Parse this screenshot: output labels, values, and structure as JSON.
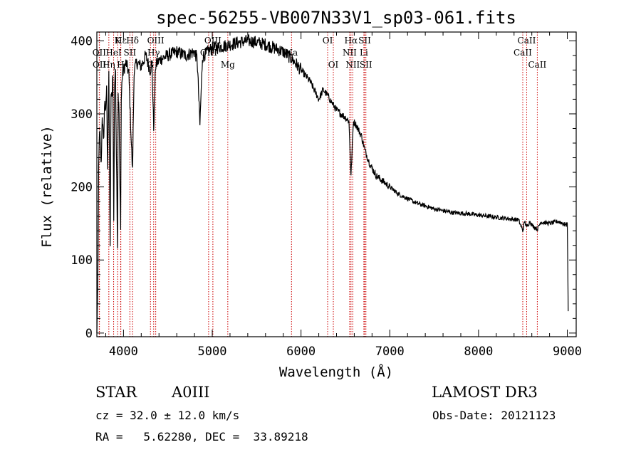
{
  "chart_data": {
    "type": "line",
    "title": "spec-56255-VB007N33V1_sp03-061.fits",
    "xlabel": "Wavelength (Å)",
    "ylabel": "Flux (relative)",
    "xlim": [
      3700,
      9100
    ],
    "ylim": [
      -5,
      412
    ],
    "xticks": [
      4000,
      5000,
      6000,
      7000,
      8000,
      9000
    ],
    "yticks": [
      0,
      100,
      200,
      300,
      400
    ],
    "series": [
      {
        "name": "spectrum",
        "x": [
          3700,
          3710,
          3720,
          3730,
          3740,
          3750,
          3760,
          3775,
          3790,
          3800,
          3810,
          3820,
          3835,
          3850,
          3860,
          3870,
          3880,
          3890,
          3900,
          3910,
          3920,
          3933,
          3940,
          3950,
          3960,
          3968,
          3975,
          3985,
          4000,
          4030,
          4060,
          4101,
          4120,
          4150,
          4200,
          4250,
          4300,
          4320,
          4340,
          4360,
          4380,
          4420,
          4500,
          4600,
          4700,
          4800,
          4830,
          4861,
          4890,
          4950,
          5000,
          5100,
          5200,
          5300,
          5400,
          5500,
          5600,
          5700,
          5800,
          5900,
          6000,
          6100,
          6200,
          6250,
          6300,
          6350,
          6400,
          6450,
          6500,
          6540,
          6563,
          6590,
          6620,
          6680,
          6720,
          6780,
          6850,
          6950,
          7100,
          7300,
          7500,
          7700,
          7900,
          8100,
          8300,
          8450,
          8498,
          8520,
          8542,
          8580,
          8600,
          8662,
          8700,
          8800,
          8900,
          8950,
          8980,
          9000,
          9010
        ],
        "y": [
          0,
          60,
          220,
          280,
          250,
          230,
          300,
          260,
          320,
          300,
          340,
          230,
          350,
          120,
          330,
          320,
          360,
          150,
          340,
          360,
          250,
          120,
          330,
          300,
          200,
          150,
          320,
          350,
          360,
          370,
          355,
          220,
          360,
          370,
          365,
          380,
          360,
          370,
          280,
          365,
          370,
          375,
          380,
          385,
          380,
          385,
          375,
          285,
          378,
          385,
          390,
          392,
          395,
          398,
          400,
          398,
          395,
          390,
          385,
          375,
          360,
          345,
          320,
          333,
          325,
          315,
          305,
          300,
          295,
          290,
          215,
          290,
          285,
          270,
          250,
          230,
          215,
          205,
          190,
          178,
          170,
          165,
          163,
          160,
          157,
          155,
          140,
          153,
          145,
          153,
          148,
          142,
          152,
          150,
          153,
          150,
          148,
          150,
          30
        ]
      }
    ],
    "line_markers": [
      {
        "label": "Hε",
        "wavelength": 3970,
        "row": 0
      },
      {
        "label": "K",
        "wavelength": 3934,
        "row": 0
      },
      {
        "label": "Hδ",
        "wavelength": 4102,
        "row": 0
      },
      {
        "label": "OIII",
        "wavelength": 4363,
        "row": 0
      },
      {
        "label": "OIII",
        "wavelength": 5007,
        "row": 0
      },
      {
        "label": "OI",
        "wavelength": 6300,
        "row": 0
      },
      {
        "label": "Hα",
        "wavelength": 6563,
        "row": 0
      },
      {
        "label": "SII",
        "wavelength": 6717,
        "row": 0
      },
      {
        "label": "CaII",
        "wavelength": 8542,
        "row": 0
      },
      {
        "label": "OII",
        "wavelength": 3727,
        "row": 1
      },
      {
        "label": "HeI",
        "wavelength": 3889,
        "row": 1
      },
      {
        "label": "SII",
        "wavelength": 4072,
        "row": 1
      },
      {
        "label": "Hγ",
        "wavelength": 4340,
        "row": 1
      },
      {
        "label": "OIII",
        "wavelength": 4959,
        "row": 1
      },
      {
        "label": "Na",
        "wavelength": 5893,
        "row": 1
      },
      {
        "label": "NII",
        "wavelength": 6548,
        "row": 1
      },
      {
        "label": "Li",
        "wavelength": 6708,
        "row": 1
      },
      {
        "label": "CaII",
        "wavelength": 8498,
        "row": 1
      },
      {
        "label": "OII",
        "wavelength": 3729,
        "row": 2
      },
      {
        "label": "Hη",
        "wavelength": 3835,
        "row": 2
      },
      {
        "label": "H",
        "wavelength": 3968,
        "row": 2
      },
      {
        "label": "G",
        "wavelength": 4304,
        "row": 2
      },
      {
        "label": "Mg",
        "wavelength": 5175,
        "row": 2
      },
      {
        "label": "OI",
        "wavelength": 6364,
        "row": 2
      },
      {
        "label": "NII",
        "wavelength": 6583,
        "row": 2
      },
      {
        "label": "SII",
        "wavelength": 6731,
        "row": 2
      },
      {
        "label": "CaII",
        "wavelength": 8662,
        "row": 2
      }
    ]
  },
  "info": {
    "class_label": "STAR",
    "subclass": "A0III",
    "survey": "LAMOST DR3",
    "cz": "cz = 32.0 ± 12.0 km/s",
    "obs_date": "Obs-Date: 20121123",
    "coords": "RA =   5.62280, DEC =  33.89218"
  },
  "colors": {
    "marker": "#cc0000",
    "line": "#000000"
  }
}
